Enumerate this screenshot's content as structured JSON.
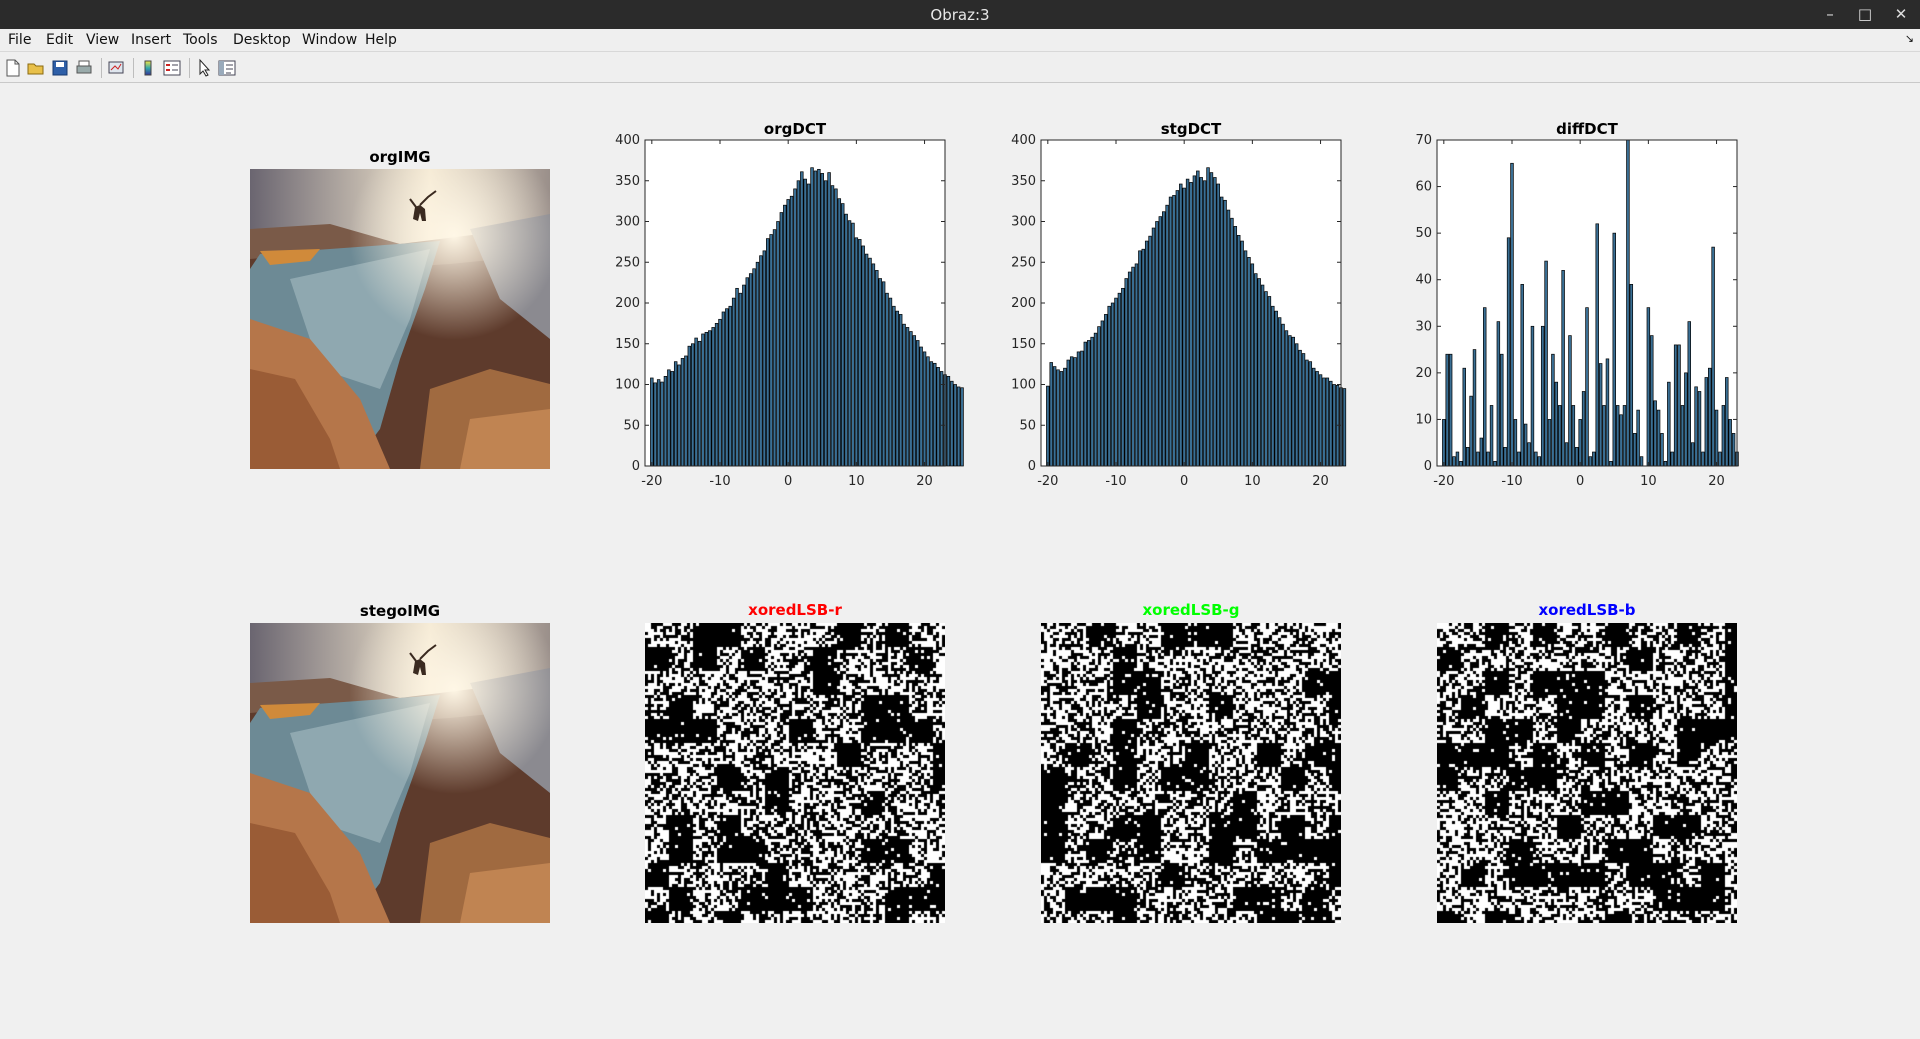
{
  "window": {
    "title": "Obraz:3"
  },
  "menu": [
    "File",
    "Edit",
    "View",
    "Insert",
    "Tools",
    "Desktop",
    "Window",
    "Help"
  ],
  "toolbar_icons": [
    "new-figure-icon",
    "open-file-icon",
    "save-icon",
    "print-icon",
    "link-plot-icon",
    "colorbar-icon",
    "legend-icon",
    "pointer-icon",
    "property-inspector-icon"
  ],
  "panels": {
    "orgIMG": {
      "title": "orgIMG",
      "title_color": "#000000"
    },
    "stegoIMG": {
      "title": "stegoIMG",
      "title_color": "#000000"
    },
    "xor_r": {
      "title": "xoredLSB-r",
      "title_color": "#ff0000"
    },
    "xor_g": {
      "title": "xoredLSB-g",
      "title_color": "#00ff00"
    },
    "xor_b": {
      "title": "xoredLSB-b",
      "title_color": "#0000ff"
    }
  },
  "colors": {
    "bar_fill": "#3a6f94",
    "bar_edge": "#000000",
    "figure_bg": "#f0f0f0"
  },
  "chart_data": [
    {
      "type": "bar",
      "title": "orgDCT",
      "xlim": [
        -21,
        23
      ],
      "ylim": [
        0,
        400
      ],
      "xticks": [
        -20,
        -10,
        0,
        10,
        20
      ],
      "yticks": [
        0,
        50,
        100,
        150,
        200,
        250,
        300,
        350,
        400
      ],
      "x_start": -20,
      "x_step": 0.5,
      "values": [
        108,
        102,
        106,
        103,
        110,
        118,
        116,
        128,
        124,
        132,
        135,
        147,
        150,
        157,
        153,
        162,
        164,
        166,
        170,
        175,
        180,
        189,
        193,
        196,
        206,
        218,
        212,
        222,
        231,
        236,
        242,
        250,
        258,
        264,
        279,
        284,
        290,
        300,
        311,
        320,
        327,
        331,
        340,
        350,
        361,
        352,
        346,
        366,
        362,
        364,
        359,
        350,
        360,
        344,
        340,
        328,
        322,
        309,
        301,
        298,
        280,
        278,
        270,
        260,
        255,
        248,
        240,
        230,
        226,
        212,
        206,
        196,
        190,
        186,
        174,
        170,
        165,
        160,
        154,
        146,
        140,
        134,
        128,
        126,
        121,
        116,
        112,
        110,
        104,
        100,
        97,
        96
      ]
    },
    {
      "type": "bar",
      "title": "stgDCT",
      "xlim": [
        -21,
        23
      ],
      "ylim": [
        0,
        400
      ],
      "xticks": [
        -20,
        -10,
        0,
        10,
        20
      ],
      "yticks": [
        0,
        50,
        100,
        150,
        200,
        250,
        300,
        350,
        400
      ],
      "x_start": -20,
      "x_step": 0.5,
      "values": [
        98,
        127,
        122,
        118,
        116,
        120,
        130,
        134,
        133,
        140,
        141,
        152,
        154,
        158,
        163,
        171,
        178,
        186,
        196,
        200,
        206,
        212,
        218,
        230,
        238,
        244,
        248,
        264,
        266,
        276,
        282,
        292,
        300,
        306,
        312,
        320,
        330,
        332,
        338,
        346,
        341,
        352,
        348,
        356,
        362,
        354,
        350,
        366,
        360,
        354,
        346,
        330,
        326,
        314,
        304,
        294,
        283,
        276,
        264,
        256,
        248,
        236,
        230,
        222,
        214,
        208,
        196,
        190,
        182,
        174,
        166,
        160,
        158,
        150,
        142,
        138,
        130,
        128,
        120,
        116,
        112,
        108,
        108,
        104,
        100,
        99,
        96,
        95
      ]
    },
    {
      "type": "bar",
      "title": "diffDCT",
      "xlim": [
        -21,
        23
      ],
      "ylim": [
        0,
        70
      ],
      "xticks": [
        -20,
        -10,
        0,
        10,
        20
      ],
      "yticks": [
        0,
        10,
        20,
        30,
        40,
        50,
        60,
        70
      ],
      "x_start": -20,
      "x_step": 0.5,
      "values": [
        10,
        24,
        24,
        2,
        3,
        1,
        21,
        4,
        15,
        25,
        3,
        6,
        34,
        3,
        13,
        1,
        31,
        24,
        4,
        49,
        65,
        10,
        3,
        39,
        9,
        5,
        30,
        3,
        2,
        30,
        44,
        10,
        24,
        18,
        13,
        42,
        5,
        28,
        13,
        4,
        10,
        16,
        34,
        2,
        3,
        52,
        22,
        13,
        23,
        1,
        50,
        13,
        11,
        13,
        70,
        39,
        7,
        12,
        2,
        0,
        34,
        28,
        14,
        12,
        7,
        1,
        18,
        3,
        26,
        26,
        13,
        20,
        31,
        5,
        17,
        16,
        3,
        19,
        21,
        47,
        12,
        3,
        13,
        19,
        10,
        7,
        3,
        0
      ]
    }
  ]
}
